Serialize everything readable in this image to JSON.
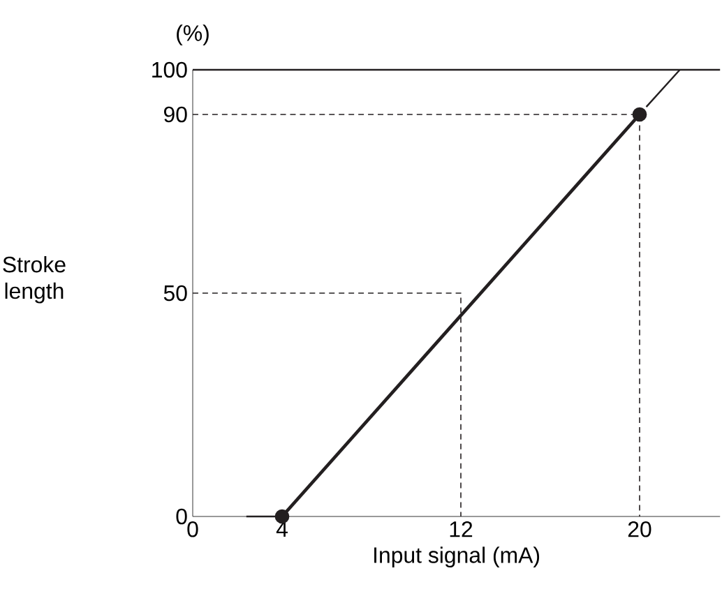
{
  "chart_data": {
    "type": "line",
    "xlabel": "Input signal (mA)",
    "ylabel": "Stroke length",
    "annotations": [
      "(%)"
    ],
    "xlim": [
      0,
      23.6
    ],
    "ylim": [
      0,
      100
    ],
    "xticks": [
      0,
      4,
      12,
      20
    ],
    "yticks": [
      0,
      50,
      90,
      100
    ],
    "series": [
      {
        "color": "#231f20",
        "x": [
          2.4,
          3.7,
          12,
          20.3,
          21.8
        ],
        "values": [
          0,
          0,
          null,
          91.7,
          100
        ],
        "marker": "none"
      },
      {
        "color": "#231f20",
        "x": [
          4,
          20
        ],
        "values": [
          0,
          90
        ],
        "marker": "circle"
      },
      {
        "color": "#231f20",
        "x": [
          0,
          20,
          20
        ],
        "values": [
          90,
          90,
          0
        ],
        "marker": "none",
        "line_style": "dashed"
      },
      {
        "color": "#231f20",
        "x": [
          0,
          12,
          12
        ],
        "values": [
          50,
          50,
          0
        ],
        "marker": "none",
        "line_style": "dashed"
      }
    ],
    "ref_lines": [
      {
        "axis": "y",
        "value": 100,
        "color": "#231f20"
      }
    ],
    "grid": false
  }
}
